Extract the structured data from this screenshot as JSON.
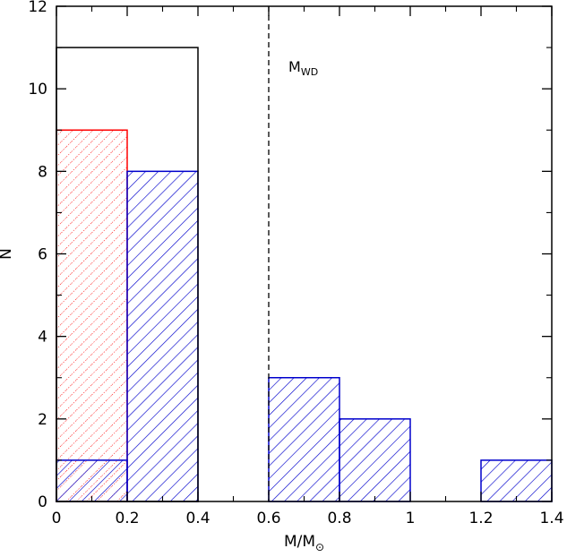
{
  "chart_data": {
    "type": "bar",
    "xlabel": {
      "main": "M/M",
      "sub": "⊙"
    },
    "ylabel": "N",
    "xlim": [
      0,
      1.4
    ],
    "ylim": [
      0,
      12
    ],
    "xticks": [
      0,
      0.2,
      0.4,
      0.6,
      0.8,
      1.0,
      1.2,
      1.4
    ],
    "xtick_labels": [
      "0",
      "0.2",
      "0.4",
      "0.6",
      "0.8",
      "1",
      "1.2",
      "1.4"
    ],
    "yticks": [
      0,
      2,
      4,
      6,
      8,
      10,
      12
    ],
    "ytick_labels": [
      "0",
      "2",
      "4",
      "6",
      "8",
      "10",
      "12"
    ],
    "series": [
      {
        "style": "outline",
        "color": "#000000",
        "bins": [
          [
            0.0,
            0.4,
            11
          ]
        ]
      },
      {
        "style": "dotted-hatch",
        "color": "#ff0000",
        "bins": [
          [
            0.0,
            0.2,
            9
          ]
        ]
      },
      {
        "style": "diagonal-hatch",
        "color": "#0000cc",
        "bins": [
          [
            0.0,
            0.2,
            1
          ],
          [
            0.2,
            0.4,
            8
          ],
          [
            0.6,
            0.8,
            3
          ],
          [
            0.8,
            1.0,
            2
          ],
          [
            1.2,
            1.4,
            1
          ]
        ]
      }
    ],
    "reference_line": {
      "x": 0.6,
      "style": "dashed",
      "label": {
        "main": "M",
        "sub": "WD"
      }
    }
  }
}
